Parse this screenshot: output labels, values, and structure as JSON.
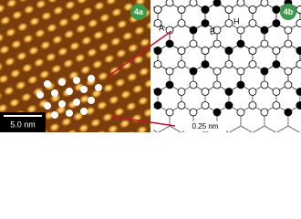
{
  "panels": [
    {
      "label": "4a",
      "scale_bar": "5.0 nm"
    },
    {
      "label": "4b",
      "labels": [
        "A",
        "B",
        "H"
      ],
      "distance": "0.25 nm"
    }
  ]
}
